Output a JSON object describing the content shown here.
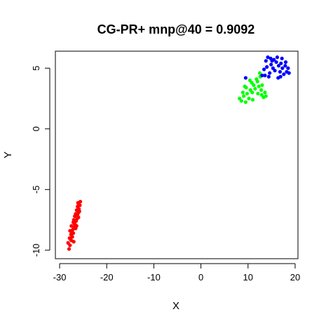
{
  "chart_data": {
    "type": "scatter",
    "title": "CG-PR+ mnp@40 = 0.9092",
    "xlabel": "X",
    "ylabel": "Y",
    "xlim": [
      -30.9,
      20.6
    ],
    "ylim": [
      -10.7,
      6.4
    ],
    "xticks": [
      -30,
      -20,
      -10,
      0,
      10,
      20
    ],
    "yticks": [
      -10,
      -5,
      0,
      5
    ],
    "grid": false,
    "legend": "none",
    "series": [
      {
        "color": "#ff0000",
        "points": [
          [
            -28.0,
            -9.9
          ],
          [
            -27.8,
            -9.6
          ],
          [
            -28.2,
            -9.4
          ],
          [
            -27.5,
            -9.2
          ],
          [
            -27.9,
            -9.0
          ],
          [
            -27.3,
            -8.9
          ],
          [
            -27.6,
            -8.7
          ],
          [
            -27.1,
            -8.6
          ],
          [
            -27.8,
            -8.4
          ],
          [
            -27.2,
            -8.3
          ],
          [
            -26.9,
            -8.1
          ],
          [
            -27.5,
            -8.0
          ],
          [
            -26.7,
            -7.9
          ],
          [
            -27.1,
            -7.7
          ],
          [
            -26.5,
            -7.6
          ],
          [
            -27.0,
            -7.5
          ],
          [
            -26.3,
            -7.4
          ],
          [
            -26.8,
            -7.2
          ],
          [
            -26.2,
            -7.1
          ],
          [
            -26.6,
            -7.0
          ],
          [
            -26.0,
            -6.9
          ],
          [
            -26.4,
            -6.7
          ],
          [
            -25.9,
            -6.6
          ],
          [
            -26.2,
            -6.4
          ],
          [
            -25.7,
            -6.3
          ],
          [
            -26.1,
            -6.1
          ],
          [
            -25.6,
            -6.0
          ],
          [
            -27.4,
            -8.5
          ],
          [
            -26.6,
            -8.2
          ],
          [
            -27.7,
            -9.1
          ],
          [
            -26.0,
            -7.3
          ],
          [
            -26.9,
            -7.8
          ],
          [
            -25.8,
            -6.8
          ],
          [
            -27.0,
            -9.3
          ],
          [
            -26.4,
            -8.0
          ]
        ]
      },
      {
        "color": "#00ff00",
        "points": [
          [
            8.2,
            2.5
          ],
          [
            8.6,
            2.3
          ],
          [
            9.1,
            2.7
          ],
          [
            9.5,
            2.2
          ],
          [
            8.9,
            3.0
          ],
          [
            9.8,
            2.9
          ],
          [
            10.2,
            2.5
          ],
          [
            10.5,
            3.2
          ],
          [
            9.6,
            3.4
          ],
          [
            10.9,
            3.0
          ],
          [
            11.2,
            3.6
          ],
          [
            11.5,
            3.3
          ],
          [
            10.8,
            3.8
          ],
          [
            12.0,
            3.9
          ],
          [
            12.3,
            3.5
          ],
          [
            11.8,
            4.1
          ],
          [
            12.6,
            4.3
          ],
          [
            12.9,
            2.8
          ],
          [
            13.3,
            2.6
          ],
          [
            13.6,
            3.0
          ],
          [
            12.1,
            2.9
          ],
          [
            13.0,
            3.6
          ],
          [
            12.5,
            4.6
          ],
          [
            13.8,
            2.7
          ],
          [
            11.0,
            2.4
          ],
          [
            9.3,
            3.5
          ],
          [
            10.4,
            4.0
          ],
          [
            12.8,
            3.2
          ]
        ]
      },
      {
        "color": "#0000ff",
        "points": [
          [
            13.0,
            4.4
          ],
          [
            13.4,
            4.9
          ],
          [
            13.8,
            5.6
          ],
          [
            14.2,
            5.9
          ],
          [
            14.0,
            5.1
          ],
          [
            14.6,
            4.6
          ],
          [
            14.9,
            5.3
          ],
          [
            15.3,
            5.0
          ],
          [
            15.7,
            4.8
          ],
          [
            16.0,
            5.5
          ],
          [
            16.2,
            5.9
          ],
          [
            16.5,
            5.2
          ],
          [
            16.8,
            4.7
          ],
          [
            17.0,
            5.4
          ],
          [
            17.3,
            5.0
          ],
          [
            17.6,
            4.5
          ],
          [
            17.9,
            5.2
          ],
          [
            18.2,
            4.7
          ],
          [
            18.5,
            5.0
          ],
          [
            18.7,
            4.6
          ],
          [
            16.4,
            4.2
          ],
          [
            15.5,
            5.7
          ],
          [
            14.4,
            4.3
          ],
          [
            17.2,
            5.8
          ],
          [
            13.6,
            4.4
          ],
          [
            9.5,
            4.2
          ],
          [
            16.9,
            4.3
          ],
          [
            15.1,
            5.6
          ],
          [
            18.0,
            5.5
          ],
          [
            14.8,
            5.8
          ]
        ]
      }
    ]
  }
}
